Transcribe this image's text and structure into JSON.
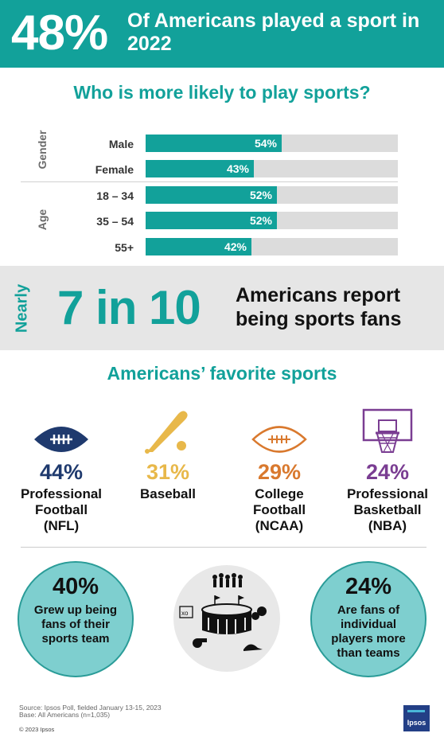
{
  "header": {
    "big_stat": "48%",
    "subtitle": "Of Americans played a sport in 2022"
  },
  "section1": {
    "title": "Who is more likely to play sports?"
  },
  "chart_data": {
    "type": "bar",
    "orientation": "horizontal",
    "title": "Who is more likely to play sports?",
    "groups": [
      {
        "name": "Gender",
        "categories": [
          "Male",
          "Female"
        ]
      },
      {
        "name": "Age",
        "categories": [
          "18 – 34",
          "35 – 54",
          "55+"
        ]
      }
    ],
    "categories": [
      "Male",
      "Female",
      "18 – 34",
      "35 – 54",
      "55+"
    ],
    "values": [
      54,
      43,
      52,
      52,
      42
    ],
    "value_labels": [
      "54%",
      "43%",
      "52%",
      "52%",
      "42%"
    ],
    "xlim": [
      0,
      100
    ],
    "grid": false,
    "bar_color": "#12a19a",
    "track_color": "#dcdcdc"
  },
  "fans": {
    "prefix": "Nearly",
    "stat": "7 in 10",
    "text": "Americans report being sports fans"
  },
  "favorites": {
    "title": "Americans’ favorite sports",
    "items": [
      {
        "icon": "football-icon",
        "pct": "44%",
        "name_lines": [
          "Professional",
          "Football",
          "(NFL)"
        ],
        "color": "#1f3a6e"
      },
      {
        "icon": "baseball-bat-icon",
        "pct": "31%",
        "name_lines": [
          "Baseball"
        ],
        "color": "#e8b84a"
      },
      {
        "icon": "college-football-icon",
        "pct": "29%",
        "name_lines": [
          "College",
          "Football",
          "(NCAA)"
        ],
        "color": "#d9792e"
      },
      {
        "icon": "basketball-hoop-icon",
        "pct": "24%",
        "name_lines": [
          "Professional",
          "Basketball",
          "(NBA)"
        ],
        "color": "#7a3d92"
      }
    ]
  },
  "circles": {
    "left": {
      "pct": "40%",
      "text_lines": [
        "Grew up being",
        "fans of their",
        "sports team"
      ]
    },
    "right": {
      "pct": "24%",
      "text_lines": [
        "Are fans of",
        "individual",
        "players more",
        "than teams"
      ]
    }
  },
  "footer": {
    "source": "Source: Ipsos Poll, fielded January 13-15, 2023",
    "base": "Base: All Americans (n=1,035)",
    "copyright": "© 2023 Ipsos",
    "logo": "Ipsos"
  }
}
